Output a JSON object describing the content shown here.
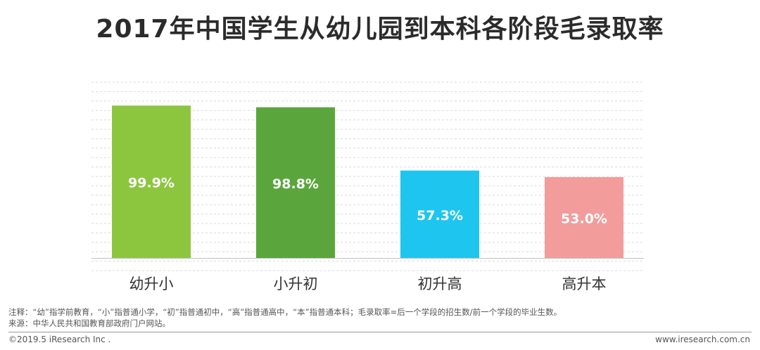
{
  "title": "2017年中国学生从幼儿园到本科各阶段毛录取率",
  "notes": {
    "note": "注释：“幼”指学前教育，“小”指普通小学，“初”指普通初中，“高”指普通高中，“本”指普通本科；毛录取率=后一个学段的招生数/前一个学段的毕业生数。",
    "source": "来源：中华人民共和国教育部政府门户网站。"
  },
  "footer": {
    "copyright": "©2019.5 iResearch Inc .",
    "website": "www.iresearch.com.cn"
  },
  "colors": {
    "bars": [
      "#8cc63f",
      "#5aa63c",
      "#1ec6ef",
      "#f29c9c"
    ],
    "label_text": "#ffffff",
    "grid": "#d9d9d9"
  },
  "chart_data": {
    "type": "bar",
    "categories": [
      "幼升小",
      "小升初",
      "初升高",
      "高升本"
    ],
    "values": [
      99.9,
      98.8,
      57.3,
      53.0
    ],
    "value_labels": [
      "99.9%",
      "98.8%",
      "57.3%",
      "53.0%"
    ],
    "ylim": [
      0,
      100
    ],
    "grid": true,
    "legend": "none",
    "title": "2017年中国学生从幼儿园到本科各阶段毛录取率"
  }
}
